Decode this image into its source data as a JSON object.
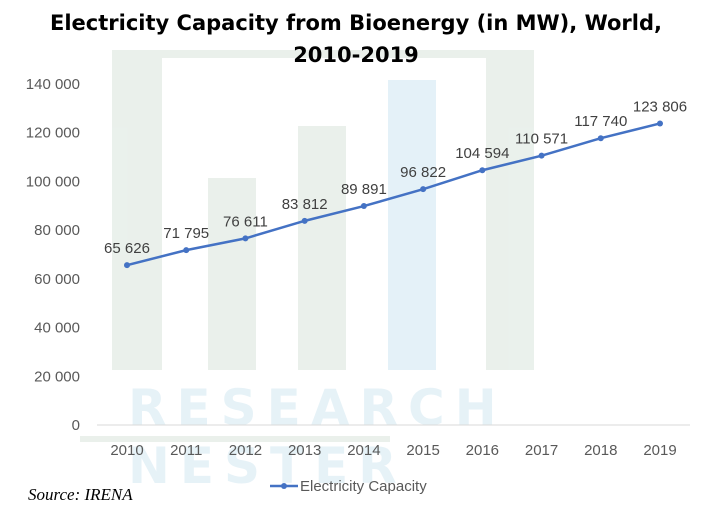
{
  "chart_data": {
    "type": "line",
    "title": "Electricity Capacity from Bioenergy (in MW), World, 2010-2019",
    "title_lines": [
      "Electricity Capacity from Bioenergy (in MW), World,",
      "2010-2019"
    ],
    "categories": [
      "2010",
      "2011",
      "2012",
      "2013",
      "2014",
      "2015",
      "2016",
      "2017",
      "2018",
      "2019"
    ],
    "series": [
      {
        "name": "Electricity Capacity",
        "color": "#4472c4",
        "values": [
          65626,
          71795,
          76611,
          83812,
          89891,
          96822,
          104594,
          110571,
          117740,
          123806
        ],
        "labels": [
          "65 626",
          "71 795",
          "76 611",
          "83 812",
          "89 891",
          "96 822",
          "104 594",
          "110 571",
          "117 740",
          "123 806"
        ]
      }
    ],
    "ylim": [
      0,
      140000
    ],
    "yticks": [
      0,
      20000,
      40000,
      60000,
      80000,
      100000,
      120000,
      140000
    ],
    "ytick_labels": [
      "0",
      "20 000",
      "40 000",
      "60 000",
      "80 000",
      "100 000",
      "120 000",
      "140 000"
    ],
    "grid": false,
    "legend": "bottom",
    "source": "Source: IRENA"
  },
  "watermark": [
    "RESEARCH",
    "NESTER"
  ]
}
